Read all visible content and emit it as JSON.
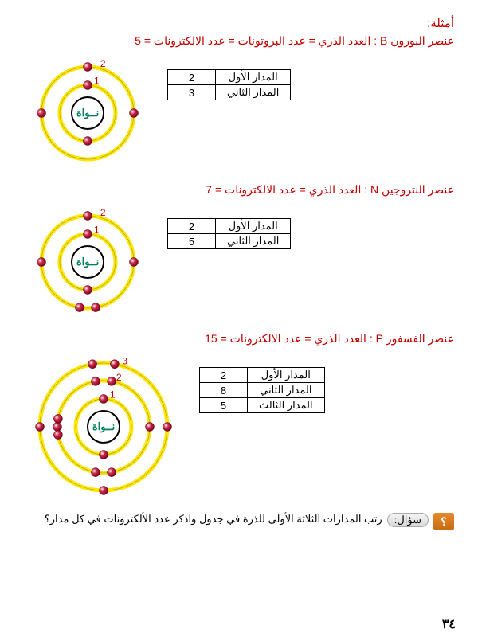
{
  "colors": {
    "title": "#c00000",
    "body": "#000000",
    "orbit_ring": "#ffe600",
    "orbit_ring_stroke": "#999933",
    "nucleus_ring": "#000000",
    "nucleus_text": "#008060",
    "electron_fill": "#8b0020",
    "electron_hilite": "#ffffff",
    "orbit_label": "#c00000"
  },
  "typography": {
    "title_fontsize": 15,
    "line_fontsize": 14,
    "table_fontsize": 13,
    "nucleus_fontsize": 13
  },
  "heading": "أمثلة:",
  "examples": [
    {
      "line": "عنصر البورون B : العدد الذري = عدد البروتونات = عدد الالكترونات = 5",
      "nucleus_label": "نــواة",
      "rings": [
        {
          "r": 35,
          "label": "1",
          "electrons_deg": [
            90,
            270
          ]
        },
        {
          "r": 58,
          "label": "2",
          "electrons_deg": [
            90,
            0,
            180
          ]
        }
      ],
      "svg_size": 160,
      "table": [
        {
          "label": "المدار الأول",
          "value": "2"
        },
        {
          "label": "المدار الثاني",
          "value": "3"
        }
      ]
    },
    {
      "line": "عنصر النتروجين N : العدد الذري = عدد الالكترونات = 7",
      "nucleus_label": "نــواة",
      "rings": [
        {
          "r": 35,
          "label": "1",
          "electrons_deg": [
            90,
            270
          ]
        },
        {
          "r": 58,
          "label": "2",
          "electrons_deg": [
            90,
            0,
            180,
            260,
            280
          ]
        }
      ],
      "svg_size": 160,
      "table": [
        {
          "label": "المدار الأول",
          "value": "2"
        },
        {
          "label": "المدار الثاني",
          "value": "5"
        }
      ]
    },
    {
      "line": "عنصر الفسفور P : العدد الذري = عدد الالكترونات = 15",
      "nucleus_label": "نــواة",
      "rings": [
        {
          "r": 35,
          "label": "1",
          "electrons_deg": [
            90,
            270
          ]
        },
        {
          "r": 58,
          "label": "2",
          "electrons_deg": [
            80,
            100,
            0,
            180,
            260,
            280,
            170,
            190
          ]
        },
        {
          "r": 80,
          "label": "3",
          "electrons_deg": [
            80,
            100,
            0,
            180,
            270
          ]
        }
      ],
      "svg_size": 200,
      "table": [
        {
          "label": "المدار الأول",
          "value": "2"
        },
        {
          "label": "المدار الثاني",
          "value": "8"
        },
        {
          "label": "المدار الثالث",
          "value": "5"
        }
      ]
    }
  ],
  "question": {
    "badge": "سؤال:",
    "icon": "؟",
    "text": "رتب المدارات الثلاثة الأولى للذرة في جدول واذكر عدد الألكترونات في   كل مدار؟"
  },
  "page_number": "٣٤"
}
